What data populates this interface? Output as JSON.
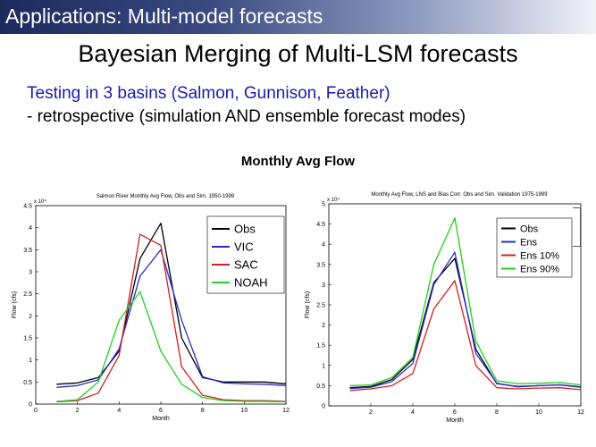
{
  "header": {
    "banner_title": "Applications: Multi-model forecasts",
    "slide_title": "Bayesian Merging of Multi-LSM forecasts",
    "subtitle": "Testing in 3 basins (Salmon, Gunnison, Feather)",
    "bullet": "- retrospective (simulation AND ensemble forecast modes)",
    "chart_heading": "Monthly Avg Flow"
  },
  "colors": {
    "banner_start": "#1c2a5c",
    "subtitle_text": "#1a1ab0"
  },
  "chart_data": [
    {
      "type": "line",
      "title": "Salmon River Monthly Avg Flow, Obs and Sim. 1950-1999",
      "xlabel": "Month",
      "ylabel": "Flow (cfs)",
      "y_exponent": "x 10⁴",
      "xlim": [
        0,
        12
      ],
      "ylim": [
        0,
        4.5
      ],
      "xticks": [
        0,
        2,
        4,
        6,
        8,
        10,
        12
      ],
      "yticks": [
        0,
        0.5,
        1,
        1.5,
        2,
        2.5,
        3,
        3.5,
        4,
        4.5
      ],
      "legend_position": "top-right",
      "x": [
        1,
        2,
        3,
        4,
        5,
        6,
        7,
        8,
        9,
        10,
        11,
        12
      ],
      "series": [
        {
          "name": "Obs",
          "color": "#000000",
          "values": [
            0.45,
            0.48,
            0.6,
            1.2,
            3.3,
            4.1,
            1.5,
            0.6,
            0.5,
            0.5,
            0.5,
            0.46
          ]
        },
        {
          "name": "VIC",
          "color": "#2b2bd0",
          "values": [
            0.38,
            0.42,
            0.55,
            1.25,
            2.9,
            3.5,
            1.9,
            0.62,
            0.48,
            0.46,
            0.45,
            0.42
          ]
        },
        {
          "name": "SAC",
          "color": "#d02020",
          "values": [
            0.05,
            0.08,
            0.25,
            1.1,
            3.85,
            3.6,
            0.85,
            0.2,
            0.1,
            0.08,
            0.08,
            0.06
          ]
        },
        {
          "name": "NOAH",
          "color": "#20d020",
          "values": [
            0.06,
            0.1,
            0.5,
            1.9,
            2.55,
            1.2,
            0.45,
            0.15,
            0.08,
            0.06,
            0.06,
            0.05
          ]
        }
      ]
    },
    {
      "type": "line",
      "title": "Monthly Avg Flow, LNS and Bias Corr. Obs and Sim. Validation 1975-1999",
      "xlabel": "Month",
      "ylabel": "Flow (cfs)",
      "y_exponent": "x 10⁴",
      "xlim": [
        0,
        12
      ],
      "ylim": [
        0,
        5
      ],
      "xticks": [
        2,
        4,
        6,
        8,
        10,
        12
      ],
      "yticks": [
        0,
        0.5,
        1,
        1.5,
        2,
        2.5,
        3,
        3.5,
        4,
        4.5,
        5
      ],
      "legend_position": "top-right",
      "x": [
        1,
        2,
        3,
        4,
        5,
        6,
        7,
        8,
        9,
        10,
        11,
        12
      ],
      "series": [
        {
          "name": "Obs",
          "color": "#000000",
          "values": [
            0.45,
            0.48,
            0.65,
            1.15,
            3.05,
            3.65,
            1.4,
            0.55,
            0.48,
            0.5,
            0.52,
            0.47
          ]
        },
        {
          "name": "Ens",
          "color": "#2b2bd0",
          "values": [
            0.43,
            0.46,
            0.6,
            1.05,
            3.0,
            3.8,
            1.3,
            0.56,
            0.47,
            0.5,
            0.52,
            0.46
          ]
        },
        {
          "name": "Ens 10%",
          "color": "#d02020",
          "values": [
            0.38,
            0.42,
            0.5,
            0.8,
            2.4,
            3.1,
            1.0,
            0.45,
            0.42,
            0.44,
            0.45,
            0.4
          ]
        },
        {
          "name": "Ens 90%",
          "color": "#20d020",
          "values": [
            0.5,
            0.52,
            0.7,
            1.2,
            3.5,
            4.65,
            1.6,
            0.62,
            0.55,
            0.56,
            0.58,
            0.52
          ]
        }
      ]
    }
  ]
}
